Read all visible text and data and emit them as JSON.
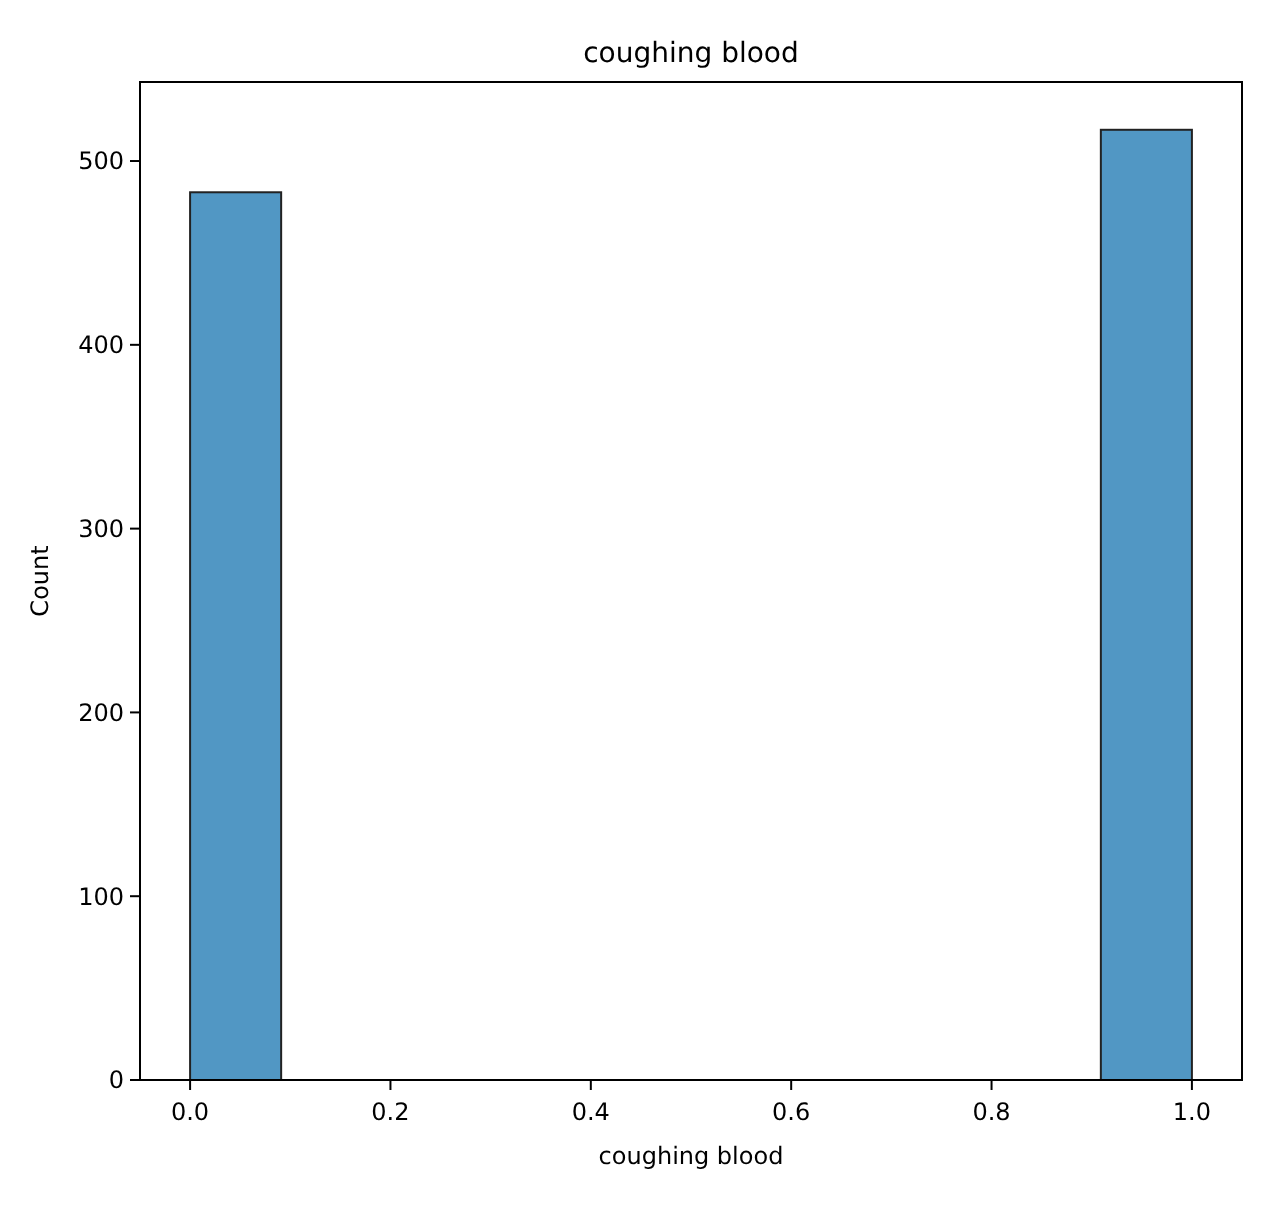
{
  "chart_data": {
    "type": "histogram",
    "title": "coughing blood",
    "xlabel": "coughing blood",
    "ylabel": "Count",
    "bins": [
      0,
      0.0909,
      0.1818,
      0.2727,
      0.3636,
      0.4545,
      0.5455,
      0.6364,
      0.7273,
      0.8182,
      0.9091,
      1
    ],
    "values": [
      483,
      0,
      0,
      0,
      0,
      0,
      0,
      0,
      0,
      0,
      517
    ],
    "color": "#5197c4",
    "xlim": [
      -0.05,
      1.05
    ],
    "ylim": [
      0,
      543
    ],
    "xticks": [
      {
        "value": 0,
        "label": "0.0"
      },
      {
        "value": 0.2,
        "label": "0.2"
      },
      {
        "value": 0.4,
        "label": "0.4"
      },
      {
        "value": 0.6,
        "label": "0.6"
      },
      {
        "value": 0.8,
        "label": "0.8"
      },
      {
        "value": 1,
        "label": "1.0"
      }
    ],
    "yticks": [
      0,
      100,
      200,
      300,
      400,
      500
    ],
    "grid": false
  }
}
